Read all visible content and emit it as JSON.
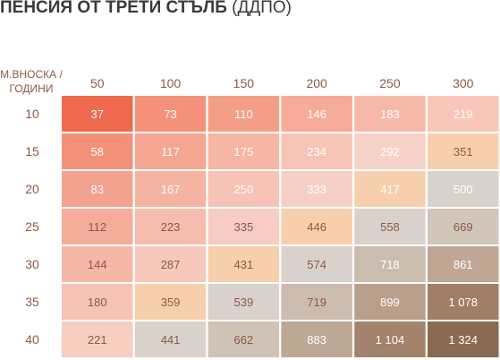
{
  "title": {
    "bold": "ПЕНСИЯ ОТ ТРЕТИ СТЪЛБ",
    "light": " (ДДПО)"
  },
  "chart_data": {
    "type": "heatmap",
    "corner_label_lines": [
      "М.ВНОСКА /",
      "ГОДИНИ"
    ],
    "columns": [
      "50",
      "100",
      "150",
      "200",
      "250",
      "300"
    ],
    "rows": [
      "10",
      "15",
      "20",
      "25",
      "30",
      "35",
      "40"
    ],
    "values": [
      [
        37,
        73,
        110,
        146,
        183,
        219
      ],
      [
        58,
        117,
        175,
        234,
        292,
        351
      ],
      [
        83,
        167,
        250,
        333,
        417,
        500
      ],
      [
        112,
        223,
        335,
        446,
        558,
        669
      ],
      [
        144,
        287,
        431,
        574,
        718,
        861
      ],
      [
        180,
        359,
        539,
        719,
        899,
        1078
      ],
      [
        221,
        441,
        662,
        883,
        1104,
        1324
      ]
    ],
    "value_labels": [
      [
        "37",
        "73",
        "110",
        "146",
        "183",
        "219"
      ],
      [
        "58",
        "117",
        "175",
        "234",
        "292",
        "351"
      ],
      [
        "83",
        "167",
        "250",
        "333",
        "417",
        "500"
      ],
      [
        "112",
        "223",
        "335",
        "446",
        "558",
        "669"
      ],
      [
        "144",
        "287",
        "431",
        "574",
        "718",
        "861"
      ],
      [
        "180",
        "359",
        "539",
        "719",
        "899",
        "1 078"
      ],
      [
        "221",
        "441",
        "662",
        "883",
        "1 104",
        "1 324"
      ]
    ],
    "cell_colors": [
      [
        "#ef6a4e",
        "#f3917a",
        "#f49e88",
        "#f5ab97",
        "#f6b9a8",
        "#f8c7ba"
      ],
      [
        "#f3917a",
        "#f5a792",
        "#f6b6a4",
        "#f6c5b8",
        "#f7d3c7",
        "#f8cfac"
      ],
      [
        "#f3a28d",
        "#f5b3a2",
        "#f6c3b6",
        "#f6d0c7",
        "#f8cfac",
        "#d9d2cc"
      ],
      [
        "#f4ad9a",
        "#f6bdae",
        "#f7ccc2",
        "#f8cfac",
        "#d9d2cc",
        "#d2c5ba"
      ],
      [
        "#f5b8a7",
        "#f7c8bc",
        "#f8cfac",
        "#d9d2cc",
        "#cbbcb0",
        "#bfa794"
      ],
      [
        "#f6c3b4",
        "#f8cfac",
        "#d9d2cc",
        "#ccbcaf",
        "#b9a08c",
        "#a07f66"
      ],
      [
        "#f6cec2",
        "#d9d2cc",
        "#cfc3b8",
        "#bda795",
        "#a3836b",
        "#8b6a52"
      ]
    ],
    "text_colors": [
      [
        "#ffffff",
        "#ffffff",
        "#ffffff",
        "#ffffff",
        "#ffffff",
        "#ffffff"
      ],
      [
        "#ffffff",
        "#ffffff",
        "#ffffff",
        "#ffffff",
        "#ffffff",
        "#8a5a45"
      ],
      [
        "#ffffff",
        "#ffffff",
        "#ffffff",
        "#ffffff",
        "#ffffff",
        "#ffffff"
      ],
      [
        "#8a5a45",
        "#8a5a45",
        "#8a5a45",
        "#8a5a45",
        "#8a5a45",
        "#8a5a45"
      ],
      [
        "#8a5a45",
        "#8a5a45",
        "#8a5a45",
        "#8a5a45",
        "#ffffff",
        "#ffffff"
      ],
      [
        "#8a5a45",
        "#8a5a45",
        "#8a5a45",
        "#8a5a45",
        "#ffffff",
        "#ffffff"
      ],
      [
        "#8a5a45",
        "#8a5a45",
        "#8a5a45",
        "#ffffff",
        "#ffffff",
        "#ffffff"
      ]
    ],
    "label_color": "#8a5a45",
    "grid": false,
    "legend": "none"
  }
}
